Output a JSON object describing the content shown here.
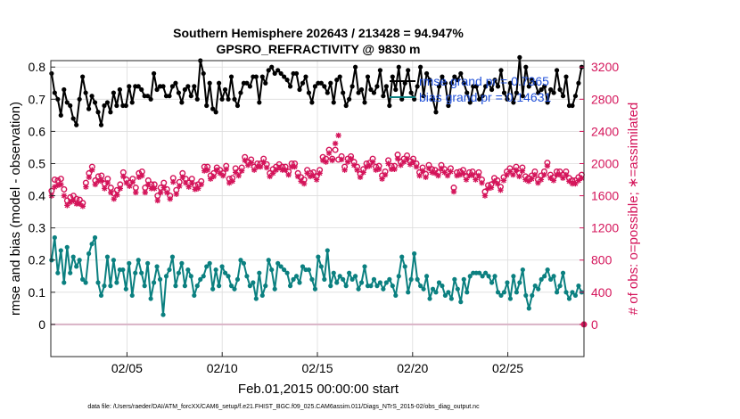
{
  "chart_data": {
    "type": "line",
    "title_line1": "Southern Hemisphere 202643 / 213428 = 94.947%",
    "title_line2": "GPSRO_REFRACTIVITY @ 9830 m",
    "xlabel": "Feb.01,2015 00:00:00 start",
    "ylabel_left": "rmse and bias (model - observation)",
    "ylabel_right": "# of obs: o=possible; ∗=assimilated",
    "footer": "data file: /Users/raeder/DAI/ATM_forcXX/CAM6_setup/f.e21.FHIST_BGC.f09_025.CAM6assim.011/Diags_NTrS_2015-02/obs_diag_output.nc",
    "xlim": [
      1,
      29
    ],
    "x_ticks": [
      5,
      10,
      15,
      20,
      25
    ],
    "x_tick_labels": [
      "02/05",
      "02/10",
      "02/15",
      "02/20",
      "02/25"
    ],
    "ylim_left": [
      -0.1,
      0.82
    ],
    "y_ticks_left": [
      0,
      0.1,
      0.2,
      0.3,
      0.4,
      0.5,
      0.6,
      0.7,
      0.8
    ],
    "y_tick_labels_left": [
      "0",
      "0.1",
      "0.2",
      "0.3",
      "0.4",
      "0.5",
      "0.6",
      "0.7",
      "0.8"
    ],
    "ylim_right": [
      -400,
      3280
    ],
    "y_ticks_right": [
      0,
      400,
      800,
      1200,
      1600,
      2000,
      2400,
      2800,
      3200
    ],
    "y_tick_labels_right": [
      "0",
      "400",
      "800",
      "1200",
      "1600",
      "2000",
      "2400",
      "2800",
      "3200"
    ],
    "grid": true,
    "legend_position": "top-right",
    "colors": {
      "rmse": "#000000",
      "bias": "#0b8080",
      "obs": "#d4145a",
      "legend_text": "#1f4fd8",
      "zero_line": "#d9b3c6"
    },
    "series": [
      {
        "name": "rmse grand pr = 0.7365",
        "axis": "left",
        "marker": "circle",
        "values": [
          0.78,
          0.72,
          0.7,
          0.65,
          0.73,
          0.69,
          0.68,
          0.64,
          0.62,
          0.7,
          0.77,
          0.72,
          0.67,
          0.71,
          0.69,
          0.66,
          0.62,
          0.68,
          0.69,
          0.66,
          0.72,
          0.68,
          0.73,
          0.68,
          0.68,
          0.74,
          0.69,
          0.74,
          0.74,
          0.73,
          0.71,
          0.71,
          0.7,
          0.78,
          0.73,
          0.74,
          0.74,
          0.71,
          0.71,
          0.74,
          0.75,
          0.72,
          0.69,
          0.73,
          0.74,
          0.71,
          0.74,
          0.7,
          0.82,
          0.78,
          0.68,
          0.75,
          0.67,
          0.66,
          0.75,
          0.7,
          0.73,
          0.7,
          0.77,
          0.7,
          0.68,
          0.72,
          0.75,
          0.75,
          0.74,
          0.77,
          0.77,
          0.69,
          0.77,
          0.75,
          0.79,
          0.8,
          0.78,
          0.79,
          0.78,
          0.77,
          0.76,
          0.74,
          0.78,
          0.78,
          0.73,
          0.75,
          0.77,
          0.72,
          0.69,
          0.74,
          0.75,
          0.75,
          0.74,
          0.72,
          0.75,
          0.69,
          0.76,
          0.77,
          0.72,
          0.68,
          0.7,
          0.74,
          0.8,
          0.72,
          0.73,
          0.69,
          0.77,
          0.73,
          0.72,
          0.74,
          0.79,
          0.71,
          0.74,
          0.68,
          0.77,
          0.73,
          0.8,
          0.7,
          0.75,
          0.79,
          0.72,
          0.7,
          0.74,
          0.8,
          0.71,
          0.78,
          0.76,
          0.7,
          0.66,
          0.74,
          0.77,
          0.75,
          0.68,
          0.75,
          0.77,
          0.76,
          0.78,
          0.75,
          0.72,
          0.69,
          0.74,
          0.74,
          0.7,
          0.71,
          0.74,
          0.75,
          0.73,
          0.76,
          0.74,
          0.79,
          0.72,
          0.7,
          0.75,
          0.69,
          0.72,
          0.83,
          0.71,
          0.8,
          0.74,
          0.76,
          0.75,
          0.72,
          0.73,
          0.74,
          0.69,
          0.73,
          0.72,
          0.79,
          0.73,
          0.71,
          0.77,
          0.68,
          0.68,
          0.71,
          0.75,
          0.8
        ]
      },
      {
        "name": "bias grand pr = 0.14631",
        "axis": "left",
        "marker": "circle",
        "values": [
          0.2,
          0.27,
          0.16,
          0.23,
          0.13,
          0.24,
          0.16,
          0.21,
          0.18,
          0.2,
          0.14,
          0.13,
          0.22,
          0.25,
          0.27,
          0.13,
          0.09,
          0.12,
          0.21,
          0.12,
          0.2,
          0.13,
          0.17,
          0.17,
          0.11,
          0.19,
          0.09,
          0.16,
          0.2,
          0.16,
          0.12,
          0.19,
          0.08,
          0.13,
          0.18,
          0.14,
          0.03,
          0.15,
          0.17,
          0.21,
          0.12,
          0.16,
          0.19,
          0.12,
          0.17,
          0.15,
          0.09,
          0.12,
          0.14,
          0.15,
          0.18,
          0.19,
          0.11,
          0.17,
          0.12,
          0.18,
          0.16,
          0.15,
          0.12,
          0.11,
          0.14,
          0.2,
          0.19,
          0.15,
          0.12,
          0.13,
          0.08,
          0.16,
          0.09,
          0.12,
          0.2,
          0.17,
          0.11,
          0.19,
          0.18,
          0.17,
          0.16,
          0.12,
          0.14,
          0.15,
          0.13,
          0.18,
          0.17,
          0.17,
          0.14,
          0.11,
          0.21,
          0.18,
          0.14,
          0.23,
          0.12,
          0.16,
          0.13,
          0.15,
          0.14,
          0.12,
          0.16,
          0.14,
          0.15,
          0.11,
          0.13,
          0.18,
          0.12,
          0.12,
          0.14,
          0.12,
          0.13,
          0.11,
          0.13,
          0.14,
          0.12,
          0.09,
          0.15,
          0.21,
          0.18,
          0.1,
          0.14,
          0.22,
          0.14,
          0.12,
          0.11,
          0.15,
          0.08,
          0.11,
          0.1,
          0.13,
          0.12,
          0.09,
          0.1,
          0.08,
          0.14,
          0.11,
          0.07,
          0.14,
          0.1,
          0.15,
          0.16,
          0.16,
          0.16,
          0.15,
          0.16,
          0.15,
          0.13,
          0.15,
          0.1,
          0.09,
          0.1,
          0.13,
          0.08,
          0.15,
          0.1,
          0.13,
          0.17,
          0.09,
          0.05,
          0.09,
          0.12,
          0.11,
          0.14,
          0.15,
          0.17,
          0.14,
          0.15,
          0.1,
          0.12,
          0.16,
          0.1,
          0.08,
          0.1,
          0.09,
          0.12,
          0.1
        ]
      },
      {
        "name": "# obs possible",
        "axis": "right",
        "marker": "circle-open",
        "values": [
          1660,
          1800,
          1790,
          1810,
          1680,
          1540,
          1580,
          1600,
          1560,
          1550,
          1510,
          1760,
          1880,
          1960,
          1790,
          1840,
          1850,
          1750,
          1810,
          1700,
          1630,
          1670,
          1740,
          1890,
          1800,
          1760,
          1810,
          1700,
          1880,
          1900,
          1700,
          1790,
          1740,
          1740,
          1600,
          1700,
          1760,
          1680,
          1600,
          1820,
          1670,
          1770,
          1880,
          1810,
          1760,
          1810,
          1730,
          1740,
          1780,
          1960,
          1960,
          1850,
          1880,
          1950,
          1920,
          1880,
          1970,
          1810,
          1820,
          1940,
          1900,
          1950,
          2080,
          2020,
          2050,
          1960,
          2000,
          2000,
          2060,
          1990,
          1880,
          1930,
          1960,
          1990,
          1960,
          1960,
          1900,
          2000,
          2000,
          1880,
          1830,
          1800,
          1920,
          1880,
          1890,
          1840,
          1920,
          2080,
          2060,
          2170,
          2060,
          2170,
          2050,
          2090,
          1960,
          2060,
          2090,
          2020,
          1960,
          1870,
          1930,
          2000,
          2010,
          2060,
          1960,
          1970,
          1850,
          1900,
          2040,
          1970,
          1970,
          2110,
          2020,
          2060,
          2100,
          2030,
          2060,
          2000,
          1890,
          1950,
          1870,
          1980,
          1930,
          1920,
          1890,
          1980,
          1930,
          1890,
          1940,
          1700,
          1890,
          1900,
          1920,
          1840,
          1890,
          1900,
          1840,
          1890,
          1800,
          1650,
          1730,
          1740,
          1820,
          1790,
          1710,
          1830,
          1900,
          1940,
          1900,
          1960,
          1880,
          1950,
          1840,
          1820,
          1850,
          1900,
          1800,
          1850,
          1900,
          2010,
          1860,
          1830,
          1900,
          1900,
          1860,
          1900,
          1820,
          1790,
          1790,
          1830,
          1860
        ]
      },
      {
        "name": "# obs assimilated",
        "axis": "right",
        "marker": "asterisk",
        "values": [
          1600,
          1710,
          1730,
          1740,
          1600,
          1480,
          1520,
          1540,
          1500,
          1500,
          1470,
          1710,
          1830,
          1920,
          1740,
          1780,
          1790,
          1690,
          1760,
          1640,
          1560,
          1610,
          1690,
          1840,
          1760,
          1720,
          1770,
          1640,
          1830,
          1850,
          1640,
          1740,
          1690,
          1690,
          1540,
          1640,
          1700,
          1640,
          1560,
          1770,
          1620,
          1720,
          1830,
          1760,
          1710,
          1760,
          1680,
          1690,
          1740,
          1910,
          1920,
          1810,
          1840,
          1920,
          1880,
          1850,
          1930,
          1760,
          1780,
          1890,
          1850,
          1910,
          2040,
          1980,
          2010,
          1920,
          1960,
          1960,
          2020,
          1950,
          1840,
          1880,
          1920,
          1950,
          1920,
          1920,
          1860,
          1960,
          1960,
          1840,
          1780,
          1750,
          1880,
          1840,
          1850,
          1800,
          1880,
          2040,
          2020,
          2130,
          2040,
          2250,
          2350,
          2050,
          1920,
          2020,
          2060,
          1980,
          1920,
          1830,
          1890,
          1960,
          1970,
          2020,
          1920,
          1930,
          1810,
          1860,
          2000,
          1930,
          1930,
          2060,
          1980,
          2020,
          2060,
          1990,
          2020,
          1960,
          1850,
          1910,
          1830,
          1940,
          1890,
          1880,
          1850,
          1940,
          1890,
          1850,
          1900,
          1650,
          1850,
          1860,
          1880,
          1800,
          1850,
          1860,
          1800,
          1850,
          1760,
          1600,
          1690,
          1700,
          1780,
          1750,
          1670,
          1790,
          1860,
          1900,
          1860,
          1920,
          1840,
          1910,
          1800,
          1780,
          1810,
          1860,
          1760,
          1800,
          1860,
          1970,
          1820,
          1790,
          1860,
          1860,
          1820,
          1860,
          1780,
          1750,
          1750,
          1790,
          1820
        ]
      }
    ]
  }
}
